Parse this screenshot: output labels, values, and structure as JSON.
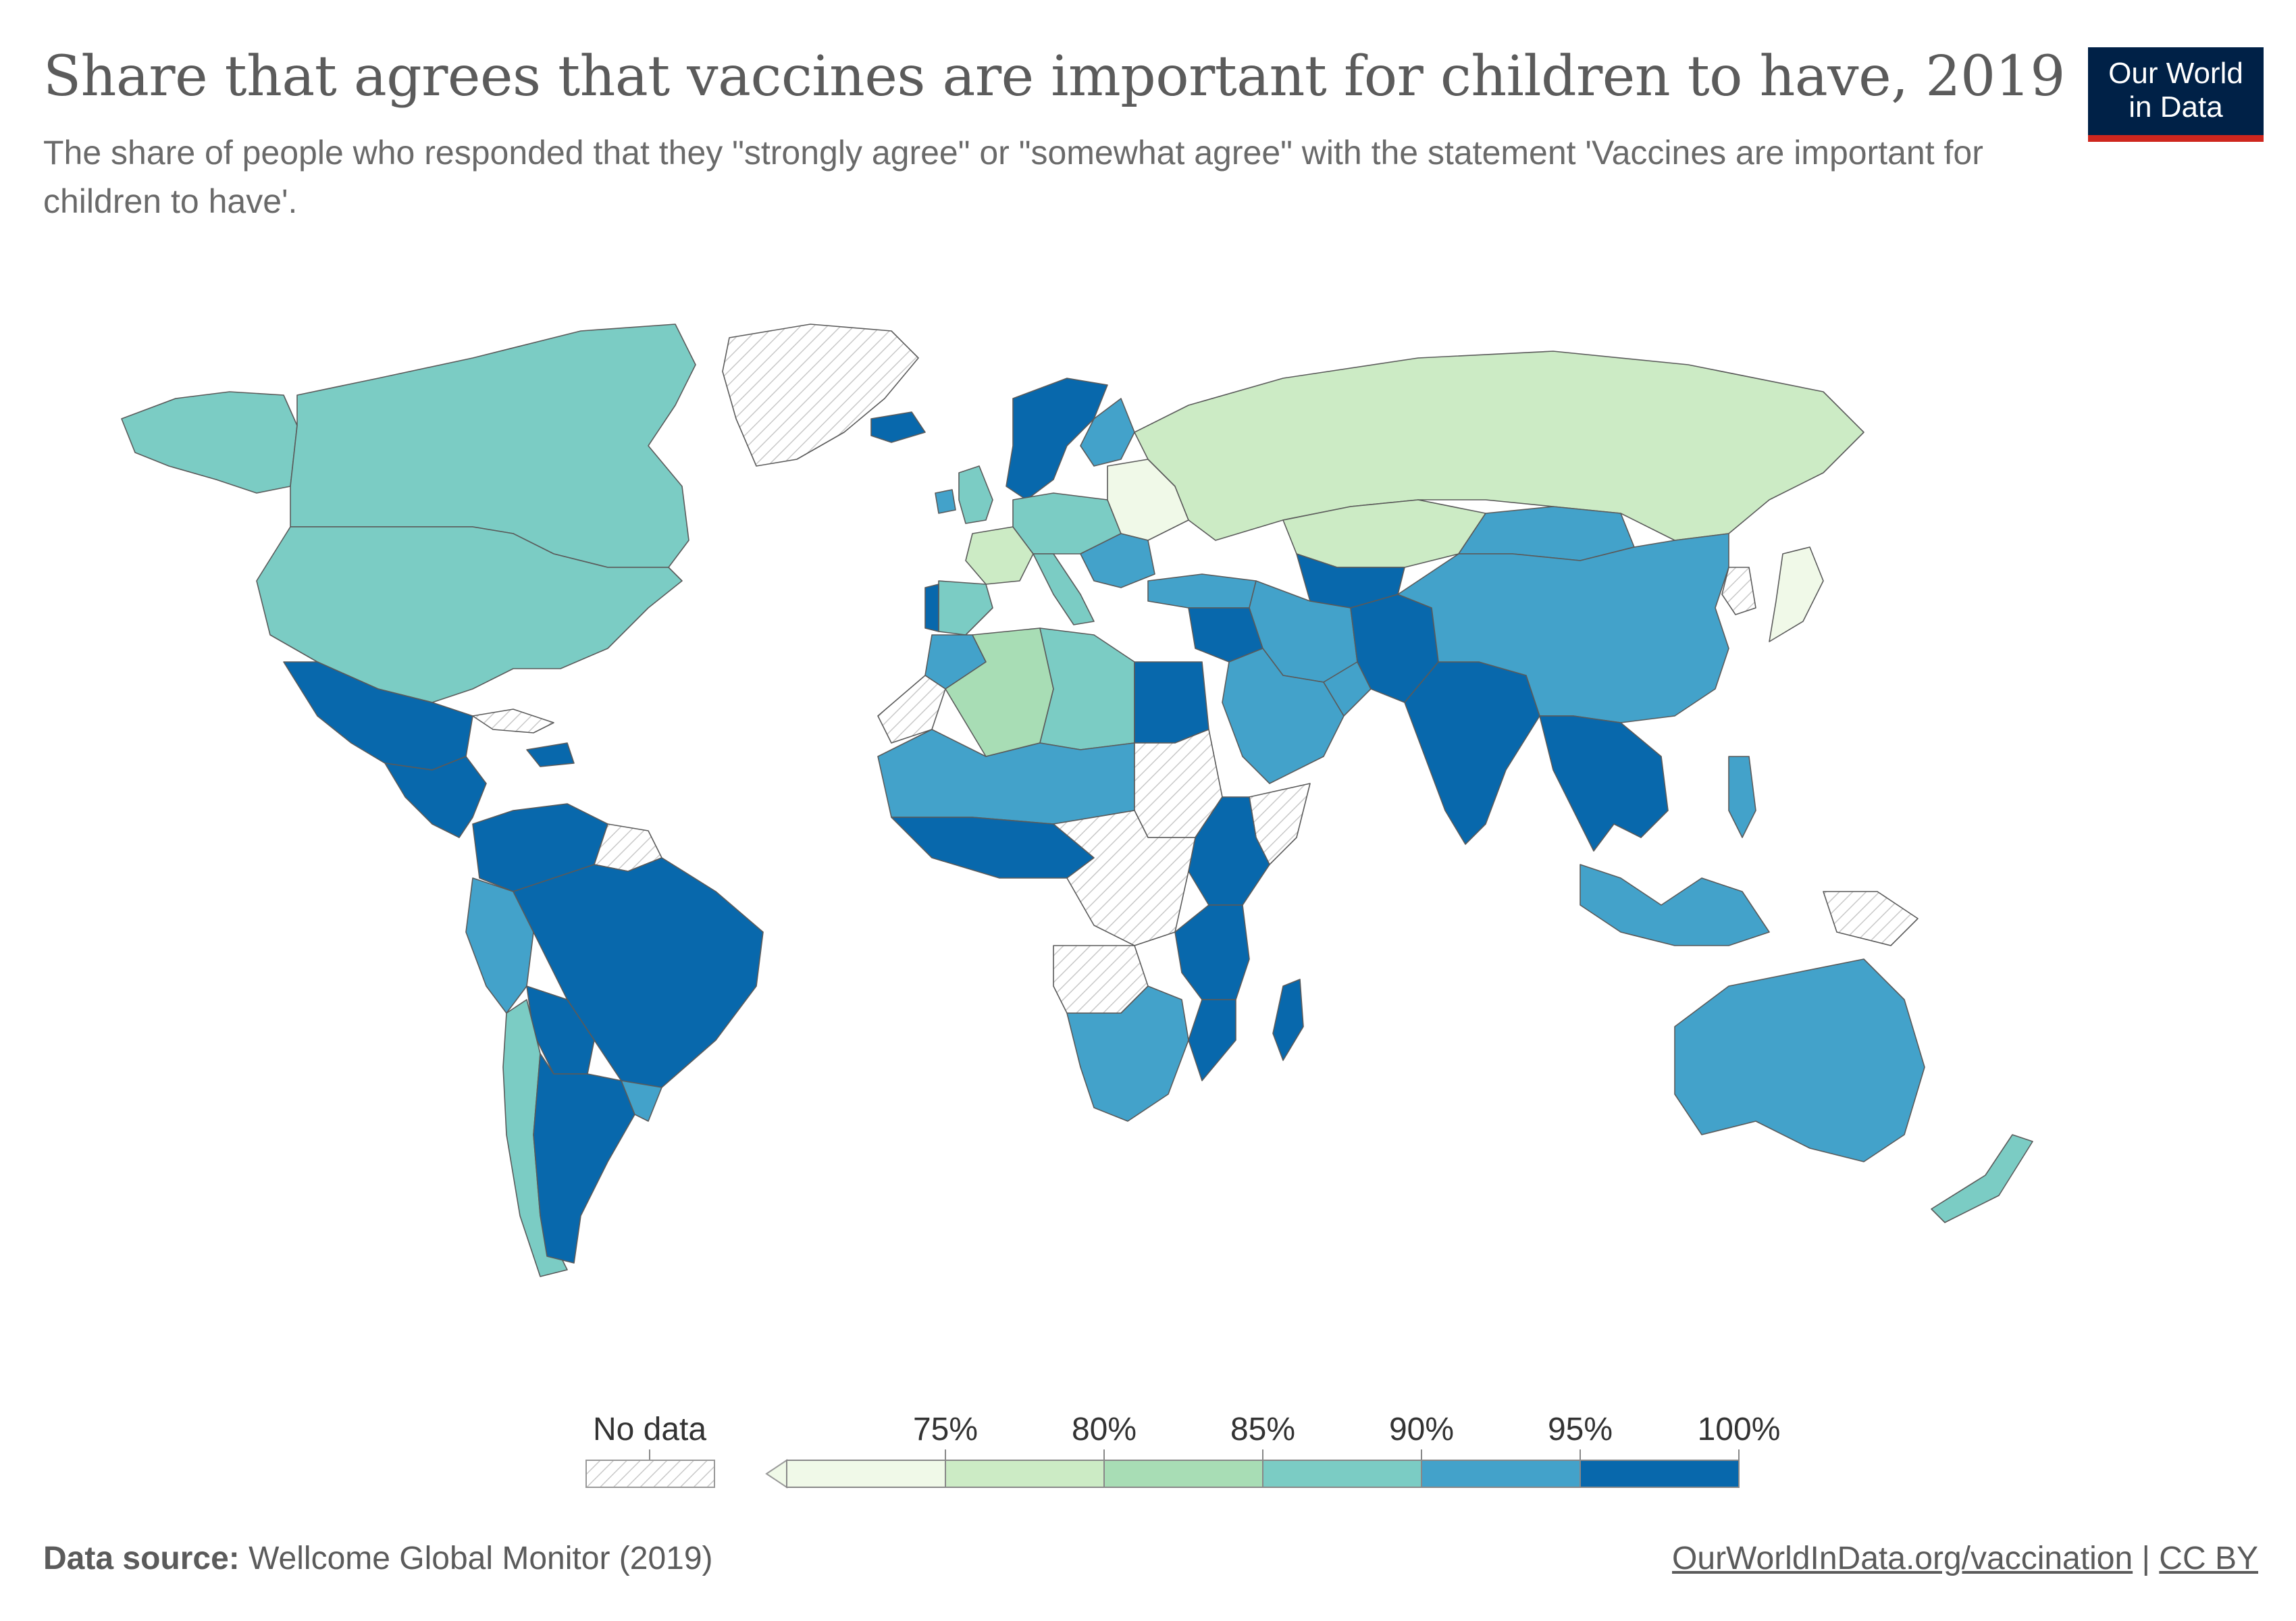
{
  "header": {
    "title": "Share that agrees that vaccines are important for children to have, 2019",
    "subtitle": "The share of people who responded that they \"strongly agree\" or \"somewhat agree\" with the statement 'Vaccines are important for children to have'.",
    "logo_line1": "Our World",
    "logo_line2": "in Data"
  },
  "colors": {
    "no_data": "#ffffff",
    "bin_lt75": "#f0f9e8",
    "bin_75_80": "#ccebc5",
    "bin_80_85": "#a8ddb5",
    "bin_85_90": "#7bccc4",
    "bin_90_95": "#43a2ca",
    "bin_95_100": "#0868ac",
    "ocean": "#ffffff",
    "country_stroke": "#5a5a5a"
  },
  "chart_data": {
    "type": "choropleth",
    "year": 2019,
    "legend": {
      "no_data_label": "No data",
      "ticks": [
        "75%",
        "80%",
        "85%",
        "90%",
        "95%",
        "100%"
      ]
    },
    "regions": [
      {
        "id": "canada",
        "bin": "85-90"
      },
      {
        "id": "usa",
        "bin": "85-90"
      },
      {
        "id": "alaska",
        "bin": "85-90"
      },
      {
        "id": "greenland",
        "bin": "none"
      },
      {
        "id": "mexico",
        "bin": "95-100"
      },
      {
        "id": "central-america",
        "bin": "95-100"
      },
      {
        "id": "cuba",
        "bin": "none"
      },
      {
        "id": "hispaniola",
        "bin": "95-100"
      },
      {
        "id": "venezuela-colombia",
        "bin": "95-100"
      },
      {
        "id": "guianas",
        "bin": "none"
      },
      {
        "id": "brazil",
        "bin": "95-100"
      },
      {
        "id": "peru-ecuador",
        "bin": "90-95"
      },
      {
        "id": "bolivia-paraguay",
        "bin": "95-100"
      },
      {
        "id": "chile",
        "bin": "85-90"
      },
      {
        "id": "argentina",
        "bin": "95-100"
      },
      {
        "id": "uruguay",
        "bin": "90-95"
      },
      {
        "id": "iceland",
        "bin": "95-100"
      },
      {
        "id": "scandinavia",
        "bin": "95-100"
      },
      {
        "id": "finland",
        "bin": "90-95"
      },
      {
        "id": "uk",
        "bin": "85-90"
      },
      {
        "id": "ireland",
        "bin": "90-95"
      },
      {
        "id": "france",
        "bin": "75-80"
      },
      {
        "id": "iberia",
        "bin": "85-90"
      },
      {
        "id": "portugal",
        "bin": "95-100"
      },
      {
        "id": "central-europe",
        "bin": "85-90"
      },
      {
        "id": "eastern-europe",
        "bin": "lt75"
      },
      {
        "id": "italy",
        "bin": "85-90"
      },
      {
        "id": "balkans",
        "bin": "90-95"
      },
      {
        "id": "russia",
        "bin": "75-80"
      },
      {
        "id": "kazakhstan",
        "bin": "75-80"
      },
      {
        "id": "turkey",
        "bin": "90-95"
      },
      {
        "id": "middle-east",
        "bin": "90-95"
      },
      {
        "id": "levant",
        "bin": "95-100"
      },
      {
        "id": "arabia",
        "bin": "90-95"
      },
      {
        "id": "iran",
        "bin": "90-95"
      },
      {
        "id": "afghanistan-pakistan",
        "bin": "95-100"
      },
      {
        "id": "central-asia",
        "bin": "95-100"
      },
      {
        "id": "india",
        "bin": "95-100"
      },
      {
        "id": "china",
        "bin": "90-95"
      },
      {
        "id": "mongolia",
        "bin": "90-95"
      },
      {
        "id": "korea",
        "bin": "none"
      },
      {
        "id": "japan",
        "bin": "lt75"
      },
      {
        "id": "southeast-asia",
        "bin": "95-100"
      },
      {
        "id": "philippines",
        "bin": "90-95"
      },
      {
        "id": "indonesia",
        "bin": "90-95"
      },
      {
        "id": "papua",
        "bin": "none"
      },
      {
        "id": "australia",
        "bin": "90-95"
      },
      {
        "id": "new-zealand",
        "bin": "85-90"
      },
      {
        "id": "morocco",
        "bin": "90-95"
      },
      {
        "id": "algeria",
        "bin": "80-85"
      },
      {
        "id": "libya",
        "bin": "85-90"
      },
      {
        "id": "egypt",
        "bin": "95-100"
      },
      {
        "id": "western-sahara",
        "bin": "none"
      },
      {
        "id": "sahel-west",
        "bin": "90-95"
      },
      {
        "id": "sudan",
        "bin": "none"
      },
      {
        "id": "horn-of-africa",
        "bin": "none"
      },
      {
        "id": "west-africa-coast",
        "bin": "95-100"
      },
      {
        "id": "ethiopia-kenya",
        "bin": "95-100"
      },
      {
        "id": "central-africa",
        "bin": "none"
      },
      {
        "id": "east-africa",
        "bin": "95-100"
      },
      {
        "id": "angola",
        "bin": "none"
      },
      {
        "id": "southern-africa",
        "bin": "90-95"
      },
      {
        "id": "mozambique",
        "bin": "95-100"
      },
      {
        "id": "madagascar",
        "bin": "95-100"
      }
    ]
  },
  "footer": {
    "source_label": "Data source:",
    "source_text": "Wellcome Global Monitor (2019)",
    "link_text": "OurWorldInData.org/vaccination",
    "separator": "|",
    "license": "CC BY"
  }
}
